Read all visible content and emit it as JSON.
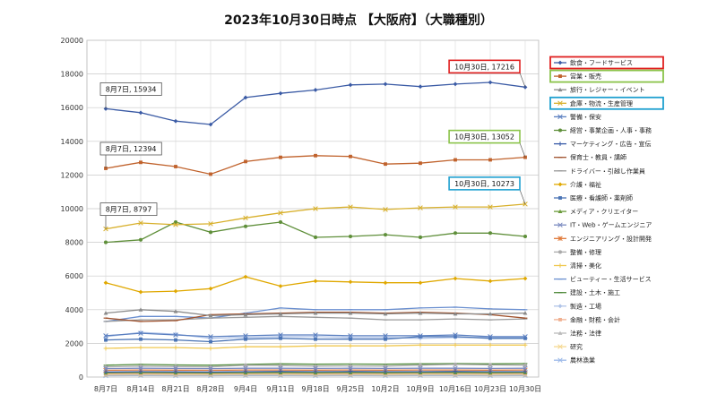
{
  "chart_data": {
    "type": "line",
    "title": "2023年10月30日時点 【大阪府】（大職種別）",
    "xlabel": "",
    "ylabel": "",
    "ylim": [
      0,
      20000
    ],
    "yticks": [
      "0",
      "2000",
      "4000",
      "6000",
      "8000",
      "10000",
      "12000",
      "14000",
      "16000",
      "18000",
      "20000"
    ],
    "categories": [
      "8月7日",
      "8月14日",
      "8月21日",
      "8月28日",
      "9月4日",
      "9月11日",
      "9月18日",
      "9月25日",
      "10月2日",
      "10月9日",
      "10月16日",
      "10月23日",
      "10月30日"
    ],
    "grid": true,
    "legend_position": "right",
    "series": [
      {
        "name": "飲食・フードサービス",
        "color": "#3b5ba5",
        "marker": "diamond",
        "values": [
          15934,
          15700,
          15200,
          15000,
          16600,
          16850,
          17050,
          17350,
          17400,
          17250,
          17400,
          17500,
          17216
        ]
      },
      {
        "name": "営業・販売",
        "color": "#c0622c",
        "marker": "square",
        "values": [
          12394,
          12750,
          12500,
          12050,
          12800,
          13050,
          13150,
          13100,
          12650,
          12700,
          12900,
          12900,
          13052
        ]
      },
      {
        "name": "旅行・レジャー・イベント",
        "color": "#8a8a8a",
        "marker": "triangle",
        "values": [
          3800,
          4000,
          3900,
          3650,
          3700,
          3750,
          3800,
          3800,
          3750,
          3800,
          3750,
          3750,
          3800
        ]
      },
      {
        "name": "倉庫・物流・生産管理",
        "color": "#d8b02c",
        "marker": "x",
        "values": [
          8797,
          9150,
          9050,
          9100,
          9450,
          9750,
          10000,
          10100,
          9950,
          10050,
          10100,
          10100,
          10273
        ]
      },
      {
        "name": "警備・保安",
        "color": "#5a7fc0",
        "marker": "x",
        "values": [
          2450,
          2600,
          2500,
          2400,
          2450,
          2500,
          2500,
          2450,
          2450,
          2450,
          2500,
          2400,
          2400
        ]
      },
      {
        "name": "経営・事業企画・人事・事務",
        "color": "#5f8f3a",
        "marker": "circle",
        "values": [
          8000,
          8150,
          9200,
          8600,
          8950,
          9200,
          8300,
          8350,
          8450,
          8300,
          8550,
          8550,
          8350
        ]
      },
      {
        "name": "マーケティング・広告・宣伝",
        "color": "#3a5ca8",
        "marker": "plus",
        "values": [
          300,
          320,
          310,
          300,
          320,
          330,
          320,
          330,
          320,
          320,
          330,
          320,
          320
        ]
      },
      {
        "name": "保育士・教員・講師",
        "color": "#a0522d",
        "marker": "dash",
        "values": [
          3500,
          3300,
          3350,
          3700,
          3750,
          3800,
          3850,
          3850,
          3800,
          3850,
          3800,
          3700,
          3500
        ]
      },
      {
        "name": "ドライバー・引越し作業員",
        "color": "#999999",
        "marker": "dash",
        "values": [
          3300,
          3400,
          3400,
          3500,
          3550,
          3600,
          3550,
          3500,
          3400,
          3400,
          3450,
          3400,
          3450
        ]
      },
      {
        "name": "介護・福祉",
        "color": "#e0a800",
        "marker": "diamond",
        "values": [
          5600,
          5050,
          5100,
          5250,
          5950,
          5400,
          5700,
          5650,
          5600,
          5600,
          5850,
          5700,
          5850
        ]
      },
      {
        "name": "医療・看護師・薬剤師",
        "color": "#4a74b5",
        "marker": "square",
        "values": [
          2200,
          2250,
          2200,
          2100,
          2250,
          2300,
          2250,
          2250,
          2250,
          2400,
          2400,
          2300,
          2300
        ]
      },
      {
        "name": "メディア・クリエイター",
        "color": "#6a9a3a",
        "marker": "triangle",
        "values": [
          250,
          260,
          250,
          240,
          250,
          260,
          250,
          260,
          250,
          260,
          260,
          250,
          260
        ]
      },
      {
        "name": "IT・Web・ゲームエンジニア",
        "color": "#7a8ac0",
        "marker": "x",
        "values": [
          500,
          520,
          510,
          500,
          520,
          520,
          510,
          520,
          510,
          520,
          520,
          510,
          520
        ]
      },
      {
        "name": "エンジニアリング・設計開発",
        "color": "#e07a3a",
        "marker": "star",
        "values": [
          400,
          420,
          410,
          400,
          420,
          420,
          410,
          420,
          410,
          420,
          420,
          410,
          420
        ]
      },
      {
        "name": "整備・修理",
        "color": "#aaaaaa",
        "marker": "circle",
        "values": [
          600,
          650,
          620,
          600,
          700,
          680,
          650,
          660,
          650,
          700,
          750,
          720,
          700
        ]
      },
      {
        "name": "清掃・美化",
        "color": "#f0c850",
        "marker": "plus",
        "values": [
          1700,
          1750,
          1750,
          1700,
          1800,
          1800,
          1850,
          1850,
          1850,
          1900,
          1900,
          1900,
          1900
        ]
      },
      {
        "name": "ビューティー・生活サービス",
        "color": "#6a8fd0",
        "marker": "dash",
        "values": [
          3300,
          3600,
          3600,
          3500,
          3800,
          4100,
          4000,
          4000,
          4000,
          4100,
          4150,
          4050,
          4000
        ]
      },
      {
        "name": "建設・土木・施工",
        "color": "#4f8a3a",
        "marker": "dash",
        "values": [
          700,
          750,
          720,
          700,
          750,
          780,
          760,
          770,
          760,
          780,
          800,
          780,
          800
        ]
      },
      {
        "name": "製造・工場",
        "color": "#b0c4e8",
        "marker": "diamond",
        "values": [
          2400,
          2650,
          2550,
          2300,
          2350,
          2400,
          2400,
          2350,
          2350,
          2300,
          2350,
          2350,
          2350
        ]
      },
      {
        "name": "金融・財務・会計",
        "color": "#f0b090",
        "marker": "square",
        "values": [
          200,
          210,
          200,
          200,
          210,
          220,
          210,
          210,
          210,
          220,
          220,
          210,
          210
        ]
      },
      {
        "name": "法務・法律",
        "color": "#bbbbbb",
        "marker": "triangle",
        "values": [
          100,
          110,
          100,
          100,
          110,
          110,
          100,
          110,
          100,
          110,
          110,
          100,
          110
        ]
      },
      {
        "name": "研究",
        "color": "#f5d890",
        "marker": "x",
        "values": [
          150,
          160,
          150,
          150,
          160,
          160,
          150,
          160,
          150,
          160,
          160,
          150,
          160
        ]
      },
      {
        "name": "農林漁業",
        "color": "#9ab8e8",
        "marker": "x",
        "values": [
          80,
          90,
          80,
          80,
          90,
          90,
          80,
          90,
          80,
          90,
          90,
          80,
          90
        ]
      }
    ],
    "annotations": [
      {
        "text": "8月7日, 15934",
        "series": 0,
        "index": 0,
        "border": "#555555"
      },
      {
        "text": "8月7日, 12394",
        "series": 1,
        "index": 0,
        "border": "#555555"
      },
      {
        "text": "8月7日, 8797",
        "series": 3,
        "index": 0,
        "border": "#555555"
      },
      {
        "text": "10月30日, 17216",
        "series": 0,
        "index": 12,
        "border": "#e02020"
      },
      {
        "text": "10月30日, 13052",
        "series": 1,
        "index": 12,
        "border": "#8bc34a"
      },
      {
        "text": "10月30日, 10273",
        "series": 3,
        "index": 12,
        "border": "#1fa0d0"
      }
    ],
    "legend_highlights": [
      {
        "series": 0,
        "color": "#e02020"
      },
      {
        "series": 1,
        "color": "#8bc34a"
      },
      {
        "series": 3,
        "color": "#1fa0d0"
      }
    ]
  }
}
